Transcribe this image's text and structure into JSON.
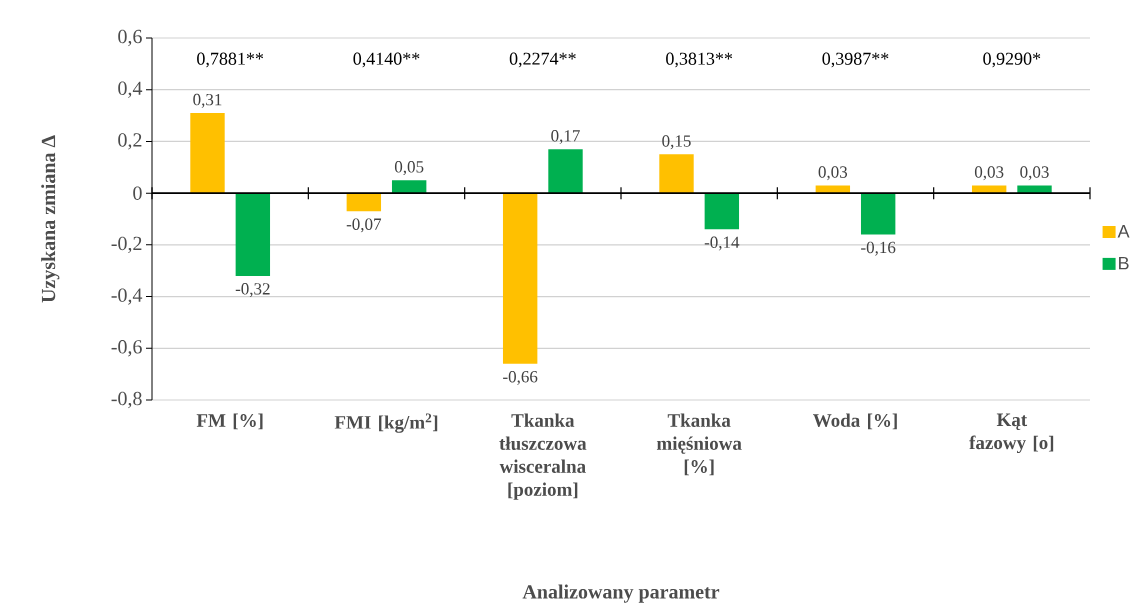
{
  "chart_data": {
    "type": "bar",
    "xlabel": "Analizowany parametr",
    "ylabel": "Uzyskana zmiana Δ",
    "categories": [
      "FM [%]",
      "FMI [kg/m$^{2}$]",
      "Tkanka tłuszczowa wisceralna [poziom]",
      "Tkanka mięśniowa [%]",
      "Woda [%]",
      "Kąt fazowy [o]"
    ],
    "series": [
      {
        "name": "A",
        "color": "#ffc000",
        "values": [
          0.31,
          -0.07,
          -0.66,
          0.15,
          0.03,
          0.03
        ],
        "value_labels": [
          "0,31",
          "-0,07",
          "-0,66",
          "0,15",
          "0,03",
          "0,03"
        ]
      },
      {
        "name": "B",
        "color": "#00b050",
        "values": [
          -0.32,
          0.05,
          0.17,
          -0.14,
          -0.16,
          0.03
        ],
        "value_labels": [
          "-0,32",
          "0,05",
          "0,17",
          "-0,14",
          "-0,16",
          "0,03"
        ]
      }
    ],
    "ylim": [
      -0.8,
      0.6
    ],
    "yticks": [
      {
        "value": -0.8,
        "label": "-0,8"
      },
      {
        "value": -0.6,
        "label": "-0,6"
      },
      {
        "value": -0.4,
        "label": "-0,4"
      },
      {
        "value": -0.2,
        "label": "-0,2"
      },
      0,
      {
        "value": 0.2,
        "label": "0,2"
      },
      {
        "value": 0.4,
        "label": "0,4"
      },
      {
        "value": 0.6,
        "label": "0,6"
      }
    ],
    "grid": "y",
    "legend": "right",
    "annotations": [
      "0,7881**",
      "0,4140**",
      "0,2274**",
      "0,3813**",
      "0,3987**",
      "0,9290*"
    ]
  }
}
